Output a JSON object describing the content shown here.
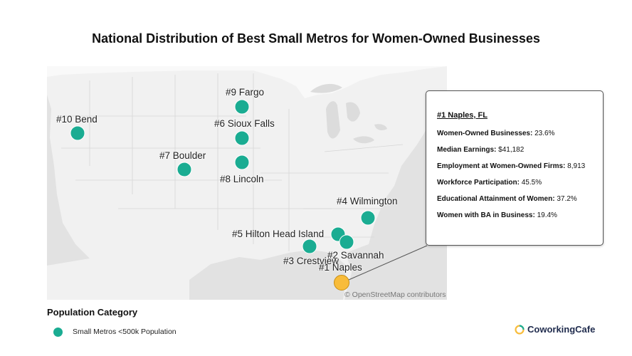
{
  "title": "National Distribution of Best Small Metros for Women-Owned Businesses",
  "map": {
    "attribution": "© OpenStreetMap contributors",
    "markers": [
      {
        "label": "#9 Fargo",
        "category": "small"
      },
      {
        "label": "#10 Bend",
        "category": "small"
      },
      {
        "label": "#6 Sioux Falls",
        "category": "small"
      },
      {
        "label": "#7 Boulder",
        "category": "small"
      },
      {
        "label": "#8 Lincoln",
        "category": "small"
      },
      {
        "label": "#4 Wilmington",
        "category": "small"
      },
      {
        "label": "#5 Hilton Head Island",
        "category": "small"
      },
      {
        "label": "#2 Savannah",
        "category": "small"
      },
      {
        "label": "#3 Crestview",
        "category": "small"
      },
      {
        "label": "#1 Naples",
        "category": "highlight"
      }
    ]
  },
  "tooltip": {
    "title": "#1 Naples, FL",
    "rows": [
      {
        "key": "Women-Owned Businesses:",
        "value": "23.6%"
      },
      {
        "key": "Median Earnings:",
        "value": "$41,182"
      },
      {
        "key": "Employment at Women-Owned Firms:",
        "value": "8,913"
      },
      {
        "key": "Workforce Participation:",
        "value": "45.5%"
      },
      {
        "key": "Educational Attainment of Women:",
        "value": "37.2%"
      },
      {
        "key": "Women with BA in Business:",
        "value": "19.4%"
      }
    ]
  },
  "legend": {
    "title": "Population Category",
    "items": [
      {
        "label": "Small Metros <500k Population",
        "color": "#1aac92"
      }
    ]
  },
  "brand": {
    "name": "CoworkingCafe"
  },
  "colors": {
    "marker": "#1aac92",
    "highlight": "#f8bc3a",
    "land": "#f1f1f1"
  }
}
